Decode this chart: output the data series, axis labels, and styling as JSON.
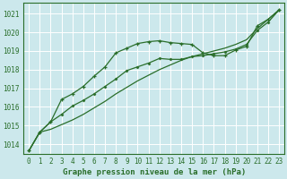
{
  "title": "Graphe pression niveau de la mer (hPa)",
  "x_ticks": [
    0,
    1,
    2,
    3,
    4,
    5,
    6,
    7,
    8,
    9,
    10,
    11,
    12,
    13,
    14,
    15,
    16,
    17,
    18,
    19,
    20,
    21,
    22,
    23
  ],
  "ylim": [
    1013.5,
    1021.6
  ],
  "yticks": [
    1014,
    1015,
    1016,
    1017,
    1018,
    1019,
    1020,
    1021
  ],
  "line_curved": [
    1013.65,
    1014.65,
    1015.2,
    1016.4,
    1016.7,
    1017.1,
    1017.65,
    1018.15,
    1018.9,
    1019.15,
    1019.4,
    1019.5,
    1019.55,
    1019.45,
    1019.4,
    1019.35,
    1018.9,
    1018.75,
    1018.75,
    1019.05,
    1019.25,
    1020.35,
    1020.7,
    1021.2
  ],
  "line_straight": [
    1013.65,
    1014.65,
    1014.8,
    1015.05,
    1015.3,
    1015.6,
    1015.95,
    1016.3,
    1016.7,
    1017.05,
    1017.4,
    1017.7,
    1018.0,
    1018.25,
    1018.5,
    1018.7,
    1018.85,
    1019.0,
    1019.15,
    1019.35,
    1019.6,
    1020.2,
    1020.7,
    1021.2
  ],
  "line_middle": [
    1013.65,
    1014.65,
    1015.2,
    1015.6,
    1016.05,
    1016.35,
    1016.7,
    1017.1,
    1017.5,
    1017.95,
    1018.15,
    1018.35,
    1018.6,
    1018.55,
    1018.55,
    1018.7,
    1018.75,
    1018.85,
    1018.95,
    1019.1,
    1019.35,
    1020.1,
    1020.55,
    1021.2
  ],
  "bg_color": "#cce8ec",
  "grid_color": "#b8d8dc",
  "line_color": "#2a6e2a",
  "text_color": "#2a6e2a",
  "title_fontsize": 6.5,
  "tick_fontsize": 5.5
}
